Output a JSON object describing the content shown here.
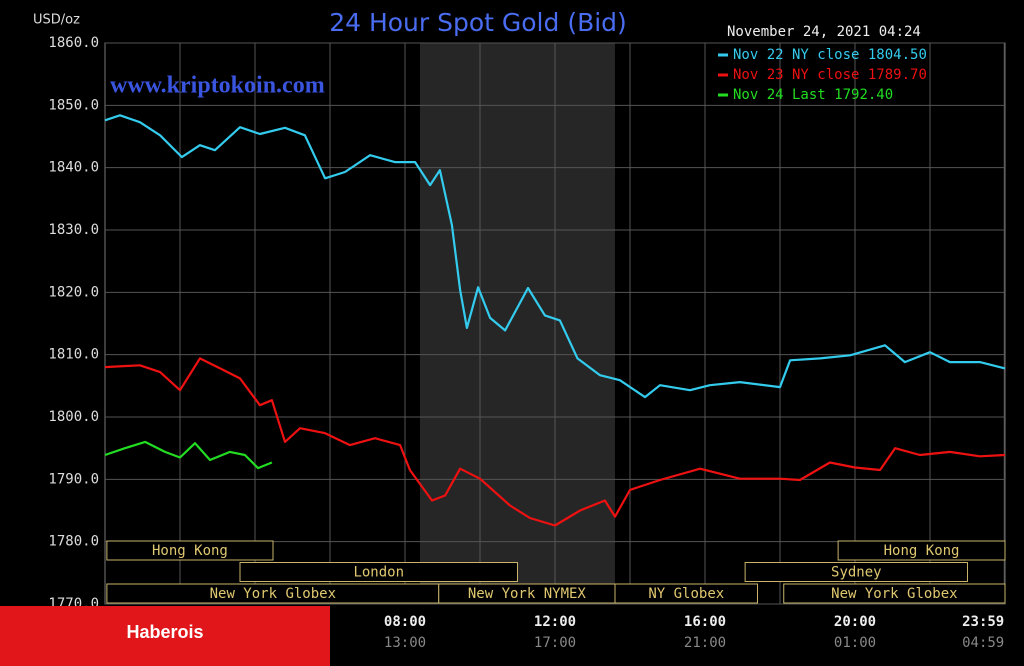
{
  "chart_data": {
    "type": "line",
    "title": "24 Hour Spot Gold (Bid)",
    "y_label": "USD/oz",
    "timestamp": "November 24, 2021 04:24",
    "watermark": "www.kriptokoin.com",
    "overlay_label": "Haberois",
    "legend": "top-right",
    "grid": true,
    "xlim": [
      0,
      24
    ],
    "ylim": [
      1770,
      1860
    ],
    "yticks": [
      {
        "value": 1770,
        "label": "1770.0"
      },
      {
        "value": 1780,
        "label": "1780.0"
      },
      {
        "value": 1790,
        "label": "1790.0"
      },
      {
        "value": 1800,
        "label": "1800.0"
      },
      {
        "value": 1810,
        "label": "1810.0"
      },
      {
        "value": 1820,
        "label": "1820.0"
      },
      {
        "value": 1830,
        "label": "1830.0"
      },
      {
        "value": 1840,
        "label": "1840.0"
      },
      {
        "value": 1850,
        "label": "1850.0"
      },
      {
        "value": 1860,
        "label": "1860.0"
      }
    ],
    "xticks": [
      {
        "value": 8,
        "label": "08:00"
      },
      {
        "value": 12,
        "label": "12:00"
      },
      {
        "value": 16,
        "label": "16:00"
      },
      {
        "value": 20,
        "label": "20:00"
      },
      {
        "value": 23.98,
        "label": "23:59"
      }
    ],
    "x2ticks": [
      {
        "value": 8,
        "label": "13:00"
      },
      {
        "value": 12,
        "label": "17:00"
      },
      {
        "value": 16,
        "label": "21:00"
      },
      {
        "value": 20,
        "label": "01:00"
      },
      {
        "value": 23.98,
        "label": "04:59"
      }
    ],
    "xminorticks": [
      2,
      4,
      6,
      10,
      14,
      18,
      22
    ],
    "shade": [
      8.4,
      13.6
    ],
    "session_rows": [
      [
        {
          "label": "Hong Kong",
          "start": 0.05,
          "end": 4.48
        },
        {
          "label": "Hong Kong",
          "start": 19.55,
          "end": 24
        }
      ],
      [
        {
          "label": "London",
          "start": 3.6,
          "end": 11
        },
        {
          "label": "Sydney",
          "start": 17.07,
          "end": 23
        }
      ],
      [
        {
          "label": "New York Globex",
          "start": 0.05,
          "end": 8.9
        },
        {
          "label": "New York NYMEX",
          "start": 8.9,
          "end": 13.6
        },
        {
          "label": "NY Globex",
          "start": 13.6,
          "end": 17.4
        },
        {
          "label": "New York Globex",
          "start": 18.1,
          "end": 24
        }
      ]
    ],
    "series": [
      {
        "name": "Nov 22 NY close",
        "color": "#33ccee",
        "last": {
          "value": 1804.5,
          "label": "1804.50"
        },
        "x": [
          0,
          0.4,
          0.93,
          1.47,
          2.05,
          2.53,
          2.93,
          3.6,
          4.13,
          4.8,
          5.33,
          5.87,
          6.4,
          7.07,
          7.73,
          8.27,
          8.67,
          8.93,
          9.25,
          9.47,
          9.65,
          9.95,
          10.27,
          10.67,
          11.28,
          11.73,
          12.13,
          12.6,
          13.2,
          13.73,
          14.4,
          14.8,
          15.6,
          16.13,
          16.93,
          18,
          18.27,
          19.07,
          19.87,
          20.8,
          21.33,
          22,
          22.53,
          23.33,
          24
        ],
        "values": [
          1847.6,
          1848.4,
          1847.3,
          1845.2,
          1841.7,
          1843.6,
          1842.8,
          1846.5,
          1845.4,
          1846.4,
          1845.2,
          1838.3,
          1839.3,
          1842.0,
          1840.9,
          1840.9,
          1837.2,
          1839.6,
          1830.8,
          1820.4,
          1814.3,
          1820.8,
          1815.9,
          1813.9,
          1820.7,
          1816.3,
          1815.5,
          1809.4,
          1806.7,
          1805.9,
          1803.2,
          1805.1,
          1804.3,
          1805.1,
          1805.6,
          1804.8,
          1809.1,
          1809.4,
          1809.9,
          1811.5,
          1808.8,
          1810.4,
          1808.8,
          1808.8,
          1807.8
        ]
      },
      {
        "name": "Nov 23 NY close",
        "color": "#ee1111",
        "last": {
          "value": 1789.7,
          "label": "1789.70"
        },
        "x": [
          0,
          0.93,
          1.47,
          2,
          2.53,
          3.07,
          3.6,
          4.13,
          4.45,
          4.8,
          5.2,
          5.87,
          6.53,
          7.2,
          7.87,
          8.13,
          8.72,
          9.07,
          9.47,
          10,
          10.8,
          11.33,
          12,
          12.67,
          13.33,
          13.6,
          14,
          14.8,
          15.87,
          16.93,
          18,
          18.53,
          19.33,
          20,
          20.67,
          21.07,
          21.73,
          22.53,
          23.33,
          24
        ],
        "values": [
          1808.0,
          1808.3,
          1807.2,
          1804.3,
          1809.4,
          1807.8,
          1806.2,
          1801.9,
          1802.7,
          1796.0,
          1798.2,
          1797.4,
          1795.5,
          1796.6,
          1795.5,
          1791.5,
          1786.6,
          1787.4,
          1791.7,
          1790.1,
          1785.8,
          1783.8,
          1782.6,
          1785.0,
          1786.6,
          1784.0,
          1788.3,
          1789.9,
          1791.7,
          1790.1,
          1790.1,
          1789.9,
          1792.7,
          1791.9,
          1791.5,
          1795.0,
          1793.9,
          1794.4,
          1793.7,
          1793.9
        ]
      },
      {
        "name": "Nov 24 Last",
        "color": "#22dd22",
        "last": {
          "value": 1792.4,
          "label": "1792.40"
        },
        "x": [
          0,
          0.53,
          1.07,
          1.6,
          2,
          2.4,
          2.8,
          3.33,
          3.73,
          4.08,
          4.45
        ],
        "values": [
          1793.9,
          1795.0,
          1796.0,
          1794.4,
          1793.5,
          1795.8,
          1793.1,
          1794.4,
          1793.9,
          1791.8,
          1792.7
        ]
      }
    ]
  }
}
